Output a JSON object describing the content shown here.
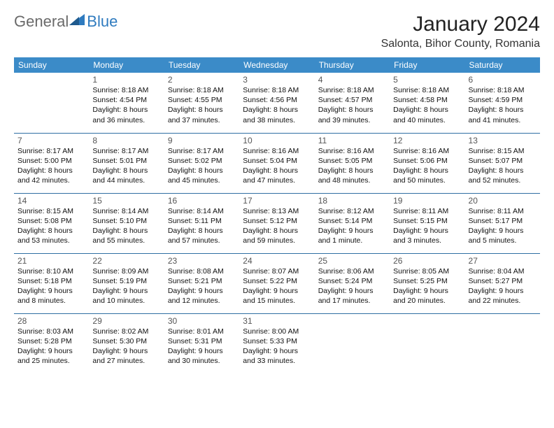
{
  "logo": {
    "text1": "General",
    "text2": "Blue"
  },
  "title": "January 2024",
  "location": "Salonta, Bihor County, Romania",
  "colors": {
    "header_bg": "#3b8bc8",
    "header_text": "#ffffff",
    "border": "#2f6fa3",
    "logo_gray": "#6a6a6a",
    "logo_blue": "#2f7bbf"
  },
  "weekdays": [
    "Sunday",
    "Monday",
    "Tuesday",
    "Wednesday",
    "Thursday",
    "Friday",
    "Saturday"
  ],
  "weeks": [
    [
      null,
      {
        "n": "1",
        "sr": "Sunrise: 8:18 AM",
        "ss": "Sunset: 4:54 PM",
        "dl1": "Daylight: 8 hours",
        "dl2": "and 36 minutes."
      },
      {
        "n": "2",
        "sr": "Sunrise: 8:18 AM",
        "ss": "Sunset: 4:55 PM",
        "dl1": "Daylight: 8 hours",
        "dl2": "and 37 minutes."
      },
      {
        "n": "3",
        "sr": "Sunrise: 8:18 AM",
        "ss": "Sunset: 4:56 PM",
        "dl1": "Daylight: 8 hours",
        "dl2": "and 38 minutes."
      },
      {
        "n": "4",
        "sr": "Sunrise: 8:18 AM",
        "ss": "Sunset: 4:57 PM",
        "dl1": "Daylight: 8 hours",
        "dl2": "and 39 minutes."
      },
      {
        "n": "5",
        "sr": "Sunrise: 8:18 AM",
        "ss": "Sunset: 4:58 PM",
        "dl1": "Daylight: 8 hours",
        "dl2": "and 40 minutes."
      },
      {
        "n": "6",
        "sr": "Sunrise: 8:18 AM",
        "ss": "Sunset: 4:59 PM",
        "dl1": "Daylight: 8 hours",
        "dl2": "and 41 minutes."
      }
    ],
    [
      {
        "n": "7",
        "sr": "Sunrise: 8:17 AM",
        "ss": "Sunset: 5:00 PM",
        "dl1": "Daylight: 8 hours",
        "dl2": "and 42 minutes."
      },
      {
        "n": "8",
        "sr": "Sunrise: 8:17 AM",
        "ss": "Sunset: 5:01 PM",
        "dl1": "Daylight: 8 hours",
        "dl2": "and 44 minutes."
      },
      {
        "n": "9",
        "sr": "Sunrise: 8:17 AM",
        "ss": "Sunset: 5:02 PM",
        "dl1": "Daylight: 8 hours",
        "dl2": "and 45 minutes."
      },
      {
        "n": "10",
        "sr": "Sunrise: 8:16 AM",
        "ss": "Sunset: 5:04 PM",
        "dl1": "Daylight: 8 hours",
        "dl2": "and 47 minutes."
      },
      {
        "n": "11",
        "sr": "Sunrise: 8:16 AM",
        "ss": "Sunset: 5:05 PM",
        "dl1": "Daylight: 8 hours",
        "dl2": "and 48 minutes."
      },
      {
        "n": "12",
        "sr": "Sunrise: 8:16 AM",
        "ss": "Sunset: 5:06 PM",
        "dl1": "Daylight: 8 hours",
        "dl2": "and 50 minutes."
      },
      {
        "n": "13",
        "sr": "Sunrise: 8:15 AM",
        "ss": "Sunset: 5:07 PM",
        "dl1": "Daylight: 8 hours",
        "dl2": "and 52 minutes."
      }
    ],
    [
      {
        "n": "14",
        "sr": "Sunrise: 8:15 AM",
        "ss": "Sunset: 5:08 PM",
        "dl1": "Daylight: 8 hours",
        "dl2": "and 53 minutes."
      },
      {
        "n": "15",
        "sr": "Sunrise: 8:14 AM",
        "ss": "Sunset: 5:10 PM",
        "dl1": "Daylight: 8 hours",
        "dl2": "and 55 minutes."
      },
      {
        "n": "16",
        "sr": "Sunrise: 8:14 AM",
        "ss": "Sunset: 5:11 PM",
        "dl1": "Daylight: 8 hours",
        "dl2": "and 57 minutes."
      },
      {
        "n": "17",
        "sr": "Sunrise: 8:13 AM",
        "ss": "Sunset: 5:12 PM",
        "dl1": "Daylight: 8 hours",
        "dl2": "and 59 minutes."
      },
      {
        "n": "18",
        "sr": "Sunrise: 8:12 AM",
        "ss": "Sunset: 5:14 PM",
        "dl1": "Daylight: 9 hours",
        "dl2": "and 1 minute."
      },
      {
        "n": "19",
        "sr": "Sunrise: 8:11 AM",
        "ss": "Sunset: 5:15 PM",
        "dl1": "Daylight: 9 hours",
        "dl2": "and 3 minutes."
      },
      {
        "n": "20",
        "sr": "Sunrise: 8:11 AM",
        "ss": "Sunset: 5:17 PM",
        "dl1": "Daylight: 9 hours",
        "dl2": "and 5 minutes."
      }
    ],
    [
      {
        "n": "21",
        "sr": "Sunrise: 8:10 AM",
        "ss": "Sunset: 5:18 PM",
        "dl1": "Daylight: 9 hours",
        "dl2": "and 8 minutes."
      },
      {
        "n": "22",
        "sr": "Sunrise: 8:09 AM",
        "ss": "Sunset: 5:19 PM",
        "dl1": "Daylight: 9 hours",
        "dl2": "and 10 minutes."
      },
      {
        "n": "23",
        "sr": "Sunrise: 8:08 AM",
        "ss": "Sunset: 5:21 PM",
        "dl1": "Daylight: 9 hours",
        "dl2": "and 12 minutes."
      },
      {
        "n": "24",
        "sr": "Sunrise: 8:07 AM",
        "ss": "Sunset: 5:22 PM",
        "dl1": "Daylight: 9 hours",
        "dl2": "and 15 minutes."
      },
      {
        "n": "25",
        "sr": "Sunrise: 8:06 AM",
        "ss": "Sunset: 5:24 PM",
        "dl1": "Daylight: 9 hours",
        "dl2": "and 17 minutes."
      },
      {
        "n": "26",
        "sr": "Sunrise: 8:05 AM",
        "ss": "Sunset: 5:25 PM",
        "dl1": "Daylight: 9 hours",
        "dl2": "and 20 minutes."
      },
      {
        "n": "27",
        "sr": "Sunrise: 8:04 AM",
        "ss": "Sunset: 5:27 PM",
        "dl1": "Daylight: 9 hours",
        "dl2": "and 22 minutes."
      }
    ],
    [
      {
        "n": "28",
        "sr": "Sunrise: 8:03 AM",
        "ss": "Sunset: 5:28 PM",
        "dl1": "Daylight: 9 hours",
        "dl2": "and 25 minutes."
      },
      {
        "n": "29",
        "sr": "Sunrise: 8:02 AM",
        "ss": "Sunset: 5:30 PM",
        "dl1": "Daylight: 9 hours",
        "dl2": "and 27 minutes."
      },
      {
        "n": "30",
        "sr": "Sunrise: 8:01 AM",
        "ss": "Sunset: 5:31 PM",
        "dl1": "Daylight: 9 hours",
        "dl2": "and 30 minutes."
      },
      {
        "n": "31",
        "sr": "Sunrise: 8:00 AM",
        "ss": "Sunset: 5:33 PM",
        "dl1": "Daylight: 9 hours",
        "dl2": "and 33 minutes."
      },
      null,
      null,
      null
    ]
  ]
}
